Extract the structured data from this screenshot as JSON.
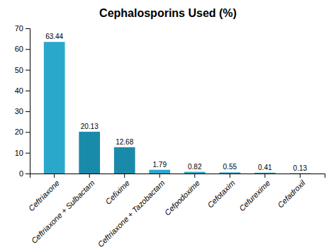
{
  "chart_data": {
    "type": "bar",
    "title": "Cephalosporins Used (%)",
    "categories": [
      "Ceftriaxone",
      "Ceftriaxone + Sulbactam",
      "Cefixime",
      "Ceftriaxone + Tazobactam",
      "Cefpodoxime",
      "Cefotaxim",
      "Cefurexime",
      "Cefadroxil"
    ],
    "values": [
      63.44,
      20.13,
      12.68,
      1.79,
      0.82,
      0.55,
      0.41,
      0.13
    ],
    "colors": [
      "#2aa8cb",
      "#1a8aaa",
      "#1a8aaa",
      "#2aa8cb",
      "#2aa8cb",
      "#2aa8cb",
      "#2aa8cb",
      "#2aa8cb"
    ],
    "ylim": [
      0,
      70
    ],
    "yticks": [
      0,
      10,
      20,
      30,
      40,
      50,
      60,
      70
    ],
    "grid": false,
    "data_labels": true
  }
}
